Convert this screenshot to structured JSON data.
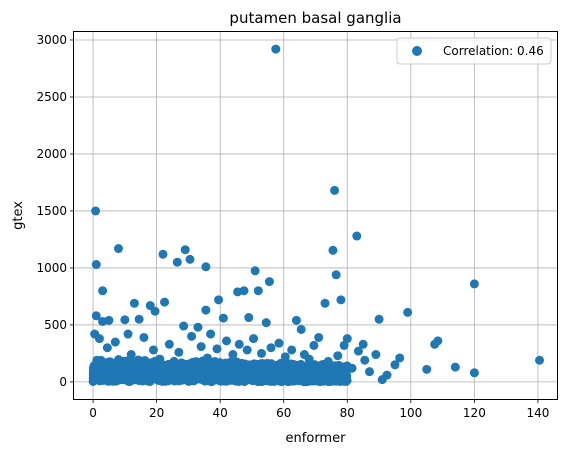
{
  "chart_data": {
    "type": "scatter",
    "title": "putamen basal ganglia",
    "xlabel": "enformer",
    "ylabel": "gtex",
    "xlim": [
      -6,
      146
    ],
    "ylim": [
      -150,
      3070
    ],
    "xticks": [
      0,
      20,
      40,
      60,
      80,
      100,
      120,
      140
    ],
    "yticks": [
      0,
      500,
      1000,
      1500,
      2000,
      2500,
      3000
    ],
    "grid": true,
    "legend": {
      "position": "top-right",
      "entries": [
        "Correlation: 0.46"
      ]
    },
    "colors": {
      "points": "#1f77b4",
      "grid": "#b0b0b0",
      "axes": "#000000"
    },
    "series": [
      {
        "name": "Correlation: 0.46",
        "points": [
          [
            57.5,
            2920
          ],
          [
            76,
            1680
          ],
          [
            0.8,
            1500
          ],
          [
            83,
            1280
          ],
          [
            8,
            1170
          ],
          [
            29,
            1160
          ],
          [
            22,
            1120
          ],
          [
            75.5,
            1155
          ],
          [
            30.5,
            1075
          ],
          [
            26.5,
            1050
          ],
          [
            1,
            1030
          ],
          [
            35.5,
            1010
          ],
          [
            51,
            975
          ],
          [
            76.5,
            940
          ],
          [
            55.5,
            880
          ],
          [
            120,
            860
          ],
          [
            47.5,
            800
          ],
          [
            52,
            800
          ],
          [
            3,
            800
          ],
          [
            45.5,
            790
          ],
          [
            39.5,
            720
          ],
          [
            73,
            690
          ],
          [
            78,
            720
          ],
          [
            22.5,
            700
          ],
          [
            13,
            690
          ],
          [
            18,
            670
          ],
          [
            19.5,
            620
          ],
          [
            99,
            610
          ],
          [
            35.5,
            630
          ],
          [
            1,
            580
          ],
          [
            41,
            560
          ],
          [
            90,
            550
          ],
          [
            49,
            565
          ],
          [
            3,
            530
          ],
          [
            5,
            540
          ],
          [
            64,
            540
          ],
          [
            10,
            545
          ],
          [
            14.5,
            550
          ],
          [
            54.5,
            520
          ],
          [
            65.5,
            460
          ],
          [
            28.5,
            490
          ],
          [
            33,
            480
          ],
          [
            71,
            390
          ],
          [
            80,
            380
          ],
          [
            107.5,
            330
          ],
          [
            108.5,
            360
          ],
          [
            96.5,
            210
          ],
          [
            105,
            110
          ],
          [
            114,
            130
          ],
          [
            120,
            80
          ],
          [
            140.5,
            190
          ],
          [
            91,
            20
          ],
          [
            95,
            150
          ],
          [
            85,
            330
          ],
          [
            89,
            240
          ],
          [
            83.5,
            270
          ],
          [
            77,
            230
          ],
          [
            79,
            320
          ],
          [
            68,
            200
          ],
          [
            72,
            150
          ],
          [
            0.5,
            420
          ],
          [
            2,
            380
          ],
          [
            4.5,
            300
          ],
          [
            7,
            350
          ],
          [
            11,
            420
          ],
          [
            16,
            390
          ],
          [
            19,
            280
          ],
          [
            24,
            330
          ],
          [
            27,
            260
          ],
          [
            31,
            400
          ],
          [
            34,
            310
          ],
          [
            37,
            420
          ],
          [
            39,
            290
          ],
          [
            42,
            360
          ],
          [
            44,
            240
          ],
          [
            46,
            330
          ],
          [
            48.5,
            280
          ],
          [
            50.5,
            380
          ],
          [
            53,
            250
          ],
          [
            56,
            300
          ],
          [
            58.5,
            340
          ],
          [
            60.5,
            220
          ],
          [
            62.5,
            280
          ],
          [
            66.5,
            240
          ],
          [
            69.5,
            320
          ],
          [
            74,
            180
          ],
          [
            85.5,
            190
          ],
          [
            81.5,
            120
          ],
          [
            87,
            90
          ],
          [
            92.5,
            60
          ],
          [
            12,
            240
          ],
          [
            21,
            200
          ],
          [
            25.5,
            180
          ],
          [
            36,
            210
          ],
          [
            43,
            170
          ],
          [
            47,
            150
          ],
          [
            59,
            160
          ],
          [
            63,
            130
          ],
          [
            67,
            110
          ],
          [
            70.5,
            90
          ],
          [
            75,
            60
          ],
          [
            78.5,
            40
          ]
        ]
      }
    ],
    "dense_band": {
      "x_range": [
        0,
        80
      ],
      "y_range": [
        0,
        150
      ],
      "count": 1400
    }
  }
}
